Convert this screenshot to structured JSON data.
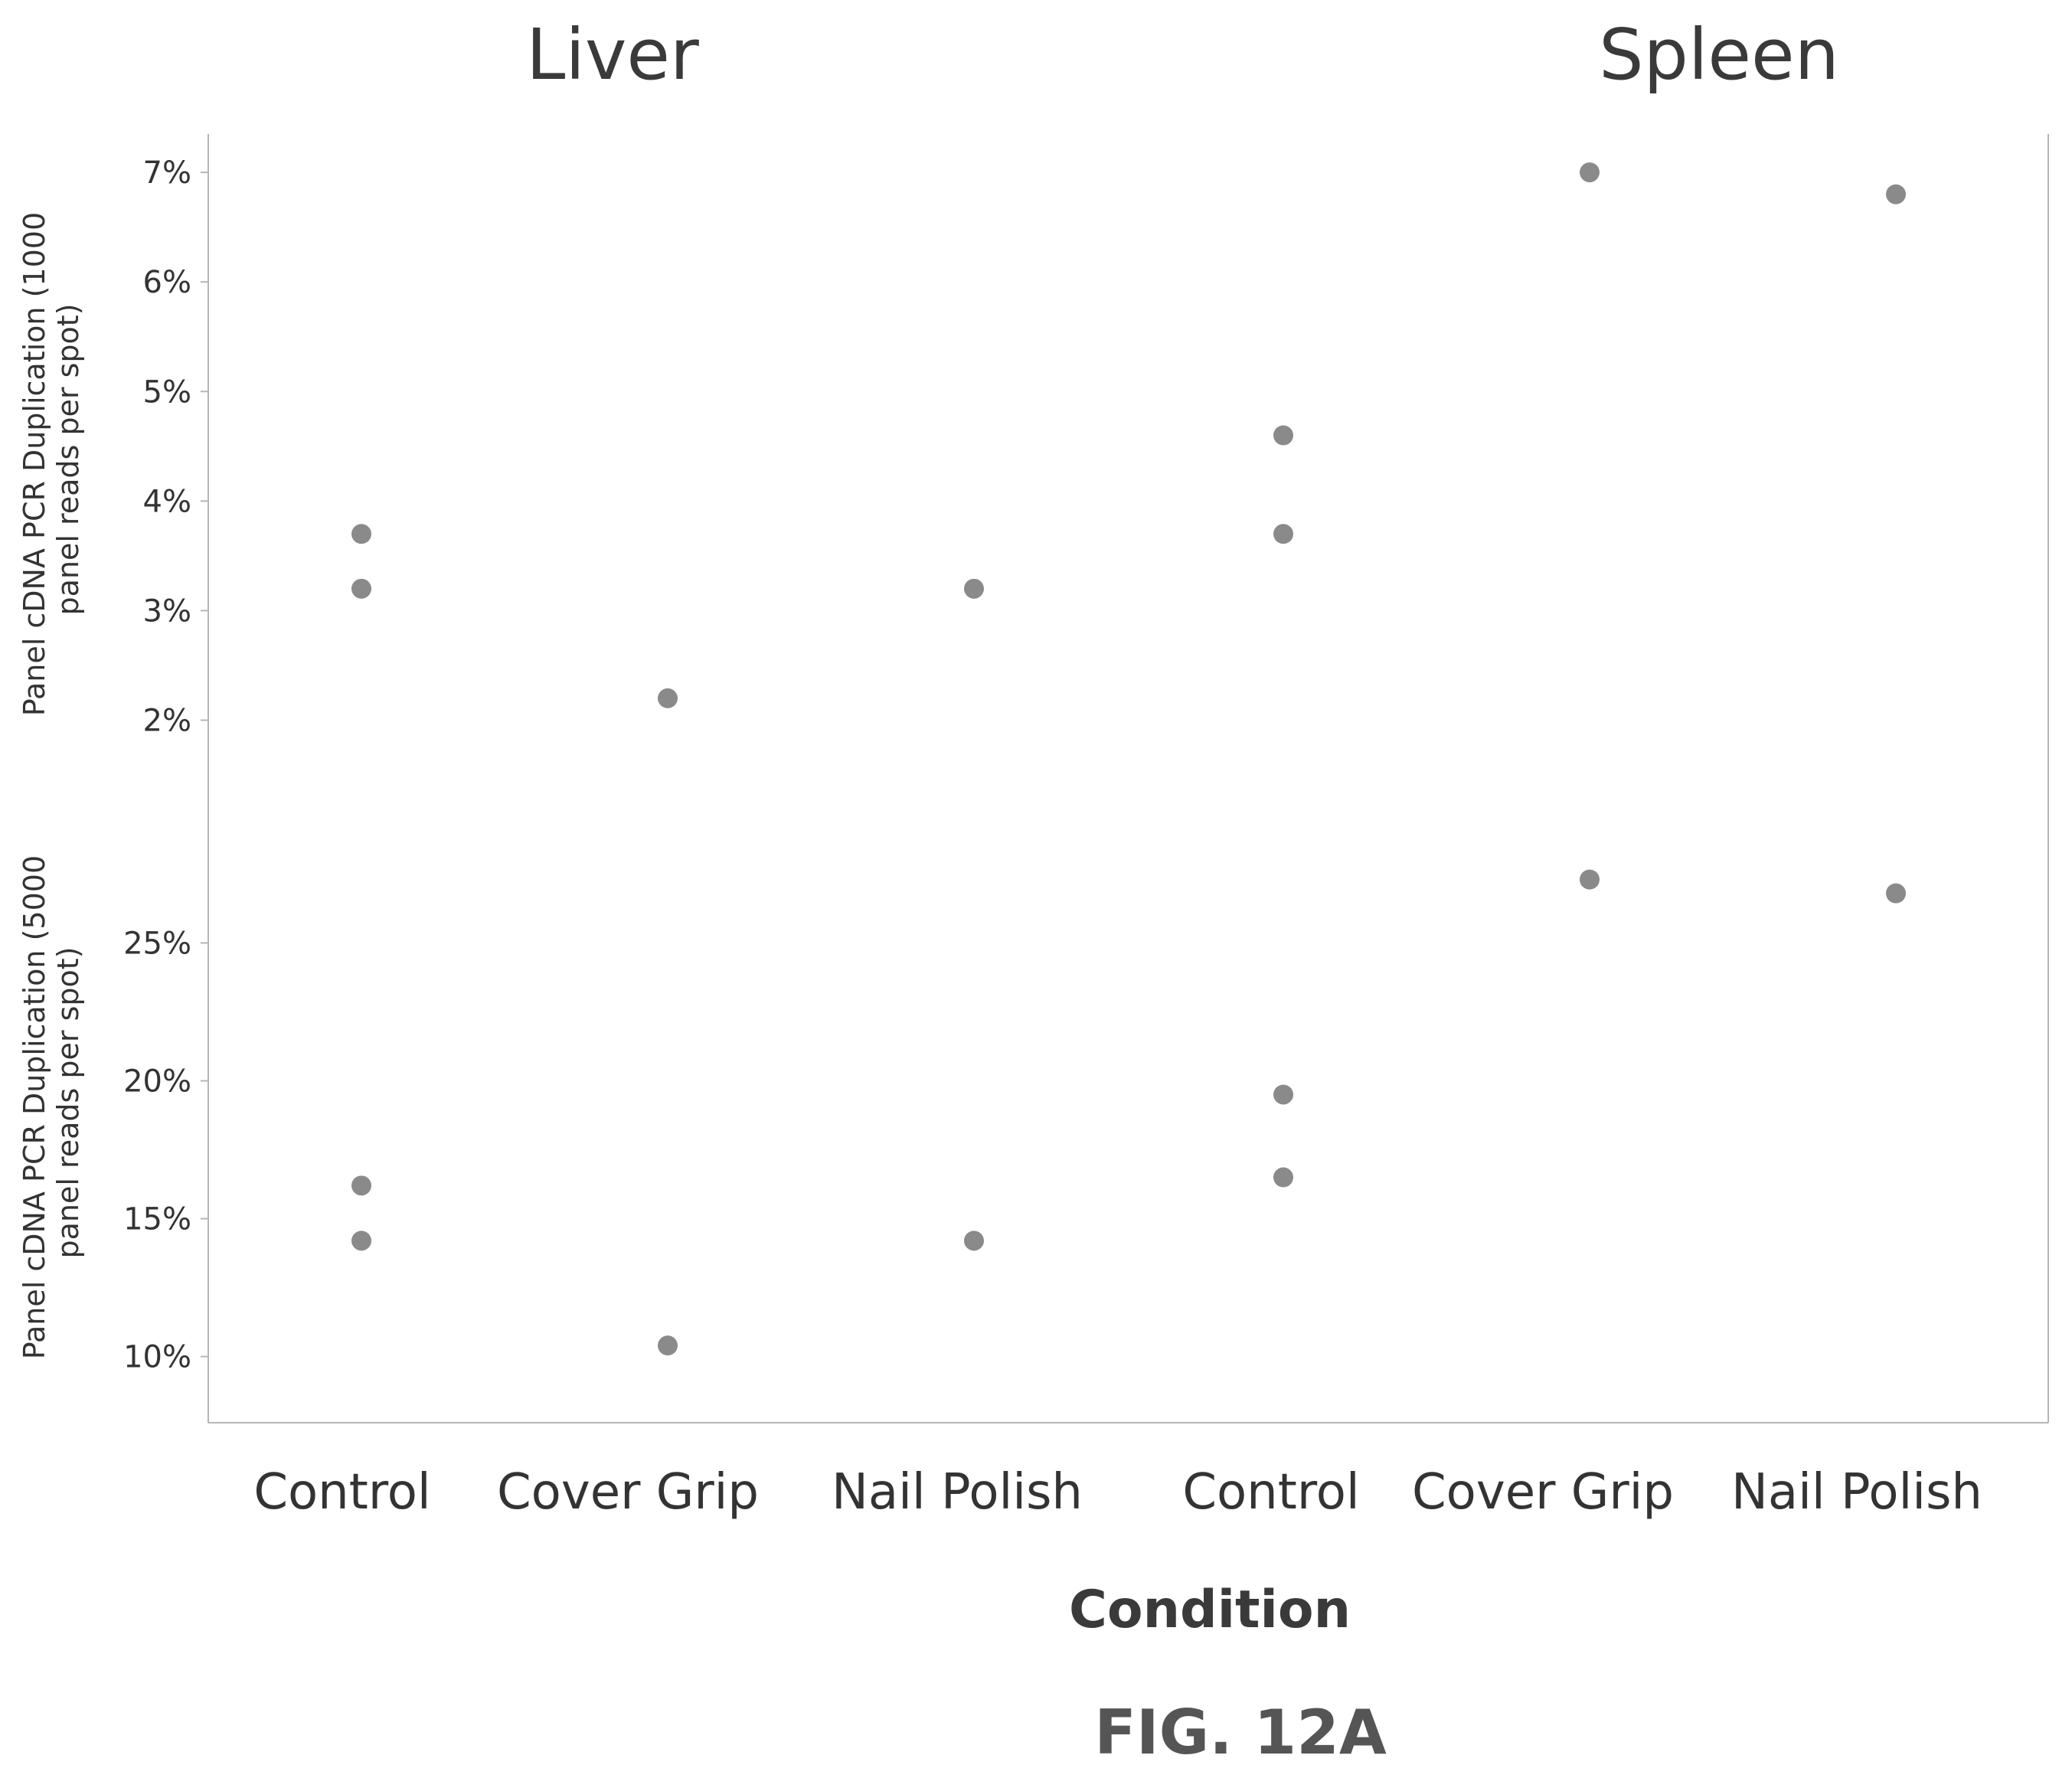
{
  "chart_data": {
    "type": "scatter",
    "figure_label": "FIG. 12A",
    "xlabel": "Condition",
    "colors": {
      "point": "#8a8a8a",
      "axis": "#b5b5b5",
      "text": "#333333"
    },
    "categories": [
      "Control",
      "Cover Grip",
      "Nail Polish",
      "Control",
      "Cover Grip",
      "Nail Polish"
    ],
    "facets": [
      {
        "title": "Liver",
        "categories": [
          "Control",
          "Cover Grip",
          "Nail Polish"
        ]
      },
      {
        "title": "Spleen",
        "categories": [
          "Control",
          "Cover Grip",
          "Nail Polish"
        ]
      }
    ],
    "panels": [
      {
        "ylabel_lines": [
          "Panel cDNA PCR Duplication (1000",
          "panel reads per spot)"
        ],
        "yticks": [
          "7%",
          "6%",
          "5%",
          "4%",
          "3%",
          "2%"
        ],
        "ytick_values": [
          7,
          6,
          5,
          4,
          3,
          2
        ],
        "ylim": [
          1.2,
          7.35
        ],
        "points": [
          {
            "facet": "Liver",
            "category": "Control",
            "y": 3.7
          },
          {
            "facet": "Liver",
            "category": "Control",
            "y": 3.2
          },
          {
            "facet": "Liver",
            "category": "Cover Grip",
            "y": 2.2
          },
          {
            "facet": "Liver",
            "category": "Nail Polish",
            "y": 3.2
          },
          {
            "facet": "Spleen",
            "category": "Control",
            "y": 4.6
          },
          {
            "facet": "Spleen",
            "category": "Control",
            "y": 3.7
          },
          {
            "facet": "Spleen",
            "category": "Cover Grip",
            "y": 7.0
          },
          {
            "facet": "Spleen",
            "category": "Nail Polish",
            "y": 6.8
          }
        ]
      },
      {
        "ylabel_lines": [
          "Panel cDNA PCR Duplication (5000",
          "panel reads per spot)"
        ],
        "yticks": [
          "25%",
          "20%",
          "15%",
          "10%"
        ],
        "ytick_values": [
          25,
          20,
          15,
          10
        ],
        "ylim": [
          7.6,
          29.9
        ],
        "points": [
          {
            "facet": "Liver",
            "category": "Control",
            "y": 16.2
          },
          {
            "facet": "Liver",
            "category": "Control",
            "y": 14.2
          },
          {
            "facet": "Liver",
            "category": "Cover Grip",
            "y": 10.4
          },
          {
            "facet": "Liver",
            "category": "Nail Polish",
            "y": 14.2
          },
          {
            "facet": "Spleen",
            "category": "Control",
            "y": 19.5
          },
          {
            "facet": "Spleen",
            "category": "Control",
            "y": 16.5
          },
          {
            "facet": "Spleen",
            "category": "Cover Grip",
            "y": 27.3
          },
          {
            "facet": "Spleen",
            "category": "Nail Polish",
            "y": 26.8
          }
        ]
      }
    ]
  }
}
